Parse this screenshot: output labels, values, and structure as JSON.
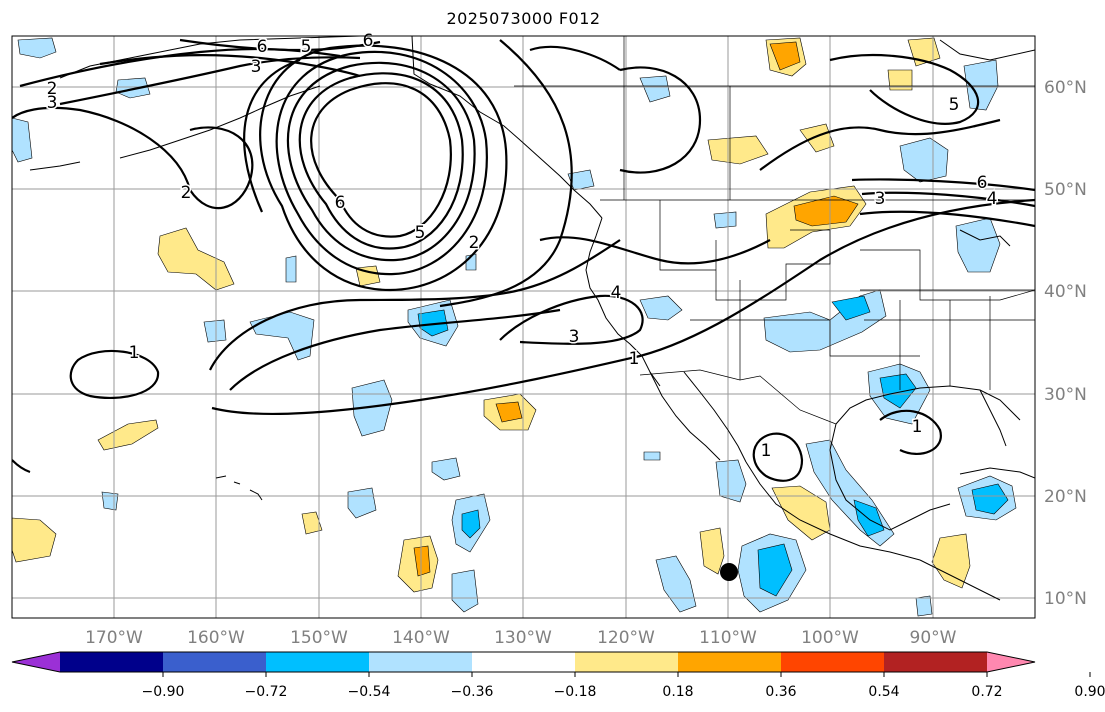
{
  "title": "2025073000 F012",
  "lat_labels": [
    "60°N",
    "50°N",
    "40°N",
    "30°N",
    "20°N",
    "10°N"
  ],
  "lon_labels": [
    "170°W",
    "160°W",
    "150°W",
    "140°W",
    "130°W",
    "120°W",
    "110°W",
    "100°W",
    "90°W"
  ],
  "colorbar": {
    "tick_labels": [
      "−0.90",
      "−0.72",
      "−0.54",
      "−0.36",
      "−0.18",
      "0.18",
      "0.36",
      "0.54",
      "0.72",
      "0.90"
    ],
    "colors": [
      "#9b30d6",
      "#00008b",
      "#3a5fcd",
      "#00bfff",
      "#b0e2ff",
      "#ffffff",
      "#ffe98a",
      "#ffa500",
      "#ff4500",
      "#b22222",
      "#ff88b0"
    ]
  },
  "contour_labels": [
    "6",
    "5",
    "6",
    "3",
    "2",
    "3",
    "2",
    "6",
    "5",
    "2",
    "4",
    "3",
    "1",
    "1",
    "6",
    "4",
    "3",
    "5",
    "1",
    "1"
  ],
  "marker": {
    "lon": "-110",
    "lat": "12.5"
  }
}
